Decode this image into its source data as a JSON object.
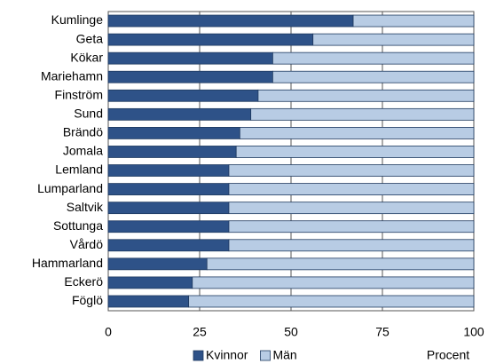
{
  "chart_data": {
    "type": "stacked-barh",
    "x_label": "Procent",
    "categories": [
      "Kumlinge",
      "Geta",
      "Kökar",
      "Mariehamn",
      "Finström",
      "Sund",
      "Brändö",
      "Jomala",
      "Lemland",
      "Lumparland",
      "Saltvik",
      "Sottunga",
      "Vårdö",
      "Hammarland",
      "Eckerö",
      "Föglö"
    ],
    "series": [
      {
        "name": "Kvinnor",
        "color": "#2e5288",
        "values": [
          67,
          56,
          45,
          45,
          41,
          39,
          36,
          35,
          33,
          33,
          33,
          33,
          33,
          27,
          23,
          22
        ]
      },
      {
        "name": "Män",
        "color": "#b8cce4",
        "values": [
          33,
          44,
          55,
          55,
          59,
          61,
          64,
          65,
          67,
          67,
          67,
          67,
          67,
          73,
          77,
          78
        ]
      }
    ],
    "xlim": [
      0,
      100
    ],
    "xticks": [
      0,
      25,
      50,
      75,
      100
    ],
    "grid": true
  }
}
